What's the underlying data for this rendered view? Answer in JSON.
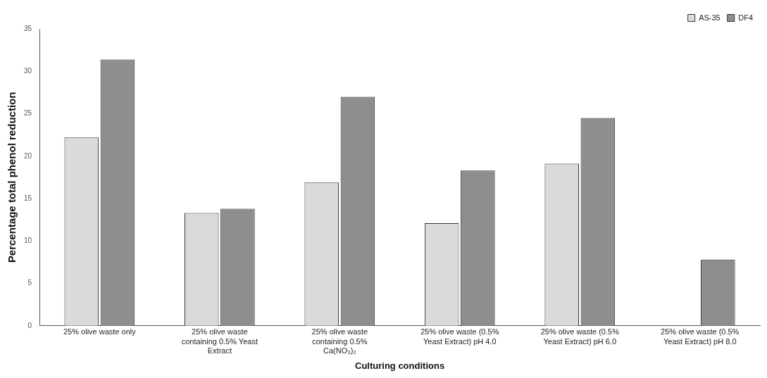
{
  "chart_data": {
    "type": "bar",
    "xlabel": "Culturing conditions",
    "ylabel": "Percentage total phenol reduction",
    "categories": [
      "25% olive waste only",
      "25% olive waste containing 0.5% Yeast Extract",
      "25% olive waste containing 0.5% Ca(NO₃)₂",
      "25% olive waste (0.5% Yeast Extract) pH 4.0",
      "25% olive waste (0.5% Yeast Extract) pH 6.0",
      "25% olive waste (0.5% Yeast Extract) pH 8.0"
    ],
    "series": [
      {
        "name": "AS-35",
        "color": "#dadada",
        "values": [
          22.2,
          13.3,
          16.9,
          12.1,
          19.1,
          0
        ]
      },
      {
        "name": "DF4",
        "color": "#8e8e8e",
        "values": [
          31.4,
          13.8,
          27,
          18.3,
          24.5,
          7.8
        ]
      }
    ],
    "ylim": [
      0,
      35
    ],
    "yticks": [
      0,
      5,
      10,
      15,
      20,
      25,
      30,
      35
    ],
    "grid": false,
    "legend": "top right"
  }
}
